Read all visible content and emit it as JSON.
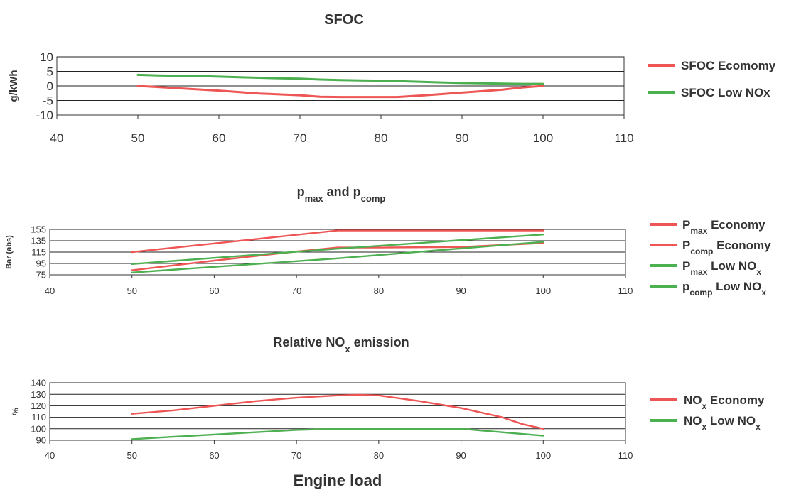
{
  "chart_data": [
    {
      "type": "line",
      "title": "SFOC",
      "xlabel": "",
      "ylabel": "g/kWh",
      "xlim": [
        40,
        110
      ],
      "ylim": [
        -10,
        10
      ],
      "xticks": [
        40,
        50,
        60,
        70,
        80,
        90,
        100,
        110
      ],
      "yticks": [
        -10,
        -5,
        0,
        5,
        10
      ],
      "grid": true,
      "legend_position": "right",
      "series": [
        {
          "name": "SFOC  Ecomomy",
          "legend_parts": [
            {
              "text": "SFOC  Ecomomy"
            }
          ],
          "color": "#ee5555",
          "x": [
            50,
            55,
            60,
            65,
            70,
            72.5,
            75,
            80,
            82,
            85,
            87.5,
            90,
            92.5,
            95,
            97.5,
            100
          ],
          "y": [
            0,
            -0.8,
            -1.6,
            -2.6,
            -3.2,
            -3.7,
            -3.8,
            -3.8,
            -3.8,
            -3.3,
            -2.8,
            -2.3,
            -1.8,
            -1.3,
            -0.5,
            0
          ]
        },
        {
          "name": "SFOC  Low NOx",
          "legend_parts": [
            {
              "text": "SFOC  Low NOx"
            }
          ],
          "color": "#4caf50",
          "x": [
            50,
            52.5,
            55,
            57.5,
            60,
            62.5,
            65,
            67.5,
            70,
            72.5,
            75,
            77.5,
            80,
            82.5,
            85,
            87.5,
            90,
            92.5,
            95,
            97.5,
            100
          ],
          "y": [
            3.8,
            3.6,
            3.5,
            3.4,
            3.2,
            3.0,
            2.8,
            2.6,
            2.5,
            2.2,
            2.0,
            1.9,
            1.8,
            1.6,
            1.4,
            1.2,
            1.0,
            0.9,
            0.8,
            0.7,
            0.7
          ]
        }
      ]
    },
    {
      "type": "line",
      "title_parts": [
        {
          "text": "p"
        },
        {
          "text": "max",
          "sub": true
        },
        {
          "text": " and p"
        },
        {
          "text": "comp",
          "sub": true
        }
      ],
      "xlabel": "",
      "ylabel": "Bar (abs)",
      "xlim": [
        40,
        110
      ],
      "ylim": [
        75,
        155
      ],
      "xticks": [
        40,
        50,
        60,
        70,
        80,
        90,
        100,
        110
      ],
      "yticks": [
        75,
        95,
        115,
        135,
        155
      ],
      "grid": true,
      "legend_position": "right",
      "series": [
        {
          "name": "Pmax Economy",
          "legend_parts": [
            {
              "text": "P"
            },
            {
              "text": "max",
              "sub": true
            },
            {
              "text": "   Economy"
            }
          ],
          "color": "#ee5555",
          "x": [
            50,
            75,
            100
          ],
          "y": [
            115,
            153,
            153
          ]
        },
        {
          "name": "Pcomp Economy",
          "legend_parts": [
            {
              "text": "P"
            },
            {
              "text": "comp",
              "sub": true
            },
            {
              "text": " Economy"
            }
          ],
          "color": "#ee5555",
          "x": [
            50,
            60,
            70,
            75,
            80,
            90,
            100
          ],
          "y": [
            83,
            100,
            116,
            123,
            123,
            124,
            131
          ]
        },
        {
          "name": "Pmax Low NOx",
          "legend_parts": [
            {
              "text": "P"
            },
            {
              "text": "max",
              "sub": true
            },
            {
              "text": "  Low NO"
            },
            {
              "text": "x",
              "sub": true
            }
          ],
          "color": "#4caf50",
          "x": [
            50,
            75,
            100
          ],
          "y": [
            94,
            121,
            146
          ]
        },
        {
          "name": "pcomp Low NOx",
          "legend_parts": [
            {
              "text": "p"
            },
            {
              "text": "comp",
              "sub": true
            },
            {
              "text": " Low NO"
            },
            {
              "text": "x",
              "sub": true
            }
          ],
          "color": "#4caf50",
          "x": [
            50,
            75,
            100
          ],
          "y": [
            79,
            104,
            133
          ]
        }
      ]
    },
    {
      "type": "line",
      "title_parts": [
        {
          "text": "Relative NO"
        },
        {
          "text": "x",
          "sub": true
        },
        {
          "text": " emission"
        }
      ],
      "xlabel": "Engine load",
      "ylabel": "%",
      "xlim": [
        40,
        110
      ],
      "ylim": [
        90,
        140
      ],
      "xticks": [
        40,
        50,
        60,
        70,
        80,
        90,
        100,
        110
      ],
      "yticks": [
        90,
        100,
        110,
        120,
        130,
        140
      ],
      "grid": true,
      "legend_position": "right",
      "series": [
        {
          "name": "NOx Economy",
          "legend_parts": [
            {
              "text": "NO"
            },
            {
              "text": "x",
              "sub": true
            },
            {
              "text": "  Economy"
            }
          ],
          "color": "#ee5555",
          "x": [
            50,
            55,
            60,
            65,
            70,
            75,
            77.5,
            80,
            85,
            90,
            92.5,
            95,
            97.5,
            100
          ],
          "y": [
            113,
            116,
            120,
            124,
            127,
            129,
            129.5,
            129,
            124,
            118,
            114,
            110,
            104,
            100
          ]
        },
        {
          "name": "NOx Low NOx",
          "legend_parts": [
            {
              "text": "NO"
            },
            {
              "text": "x",
              "sub": true
            },
            {
              "text": "  Low NO"
            },
            {
              "text": "x",
              "sub": true
            }
          ],
          "color": "#4caf50",
          "x": [
            50,
            55,
            60,
            65,
            70,
            75,
            80,
            85,
            90,
            95,
            100
          ],
          "y": [
            91,
            93,
            95,
            97,
            99,
            100,
            100,
            100,
            100,
            97,
            94
          ]
        }
      ]
    }
  ]
}
